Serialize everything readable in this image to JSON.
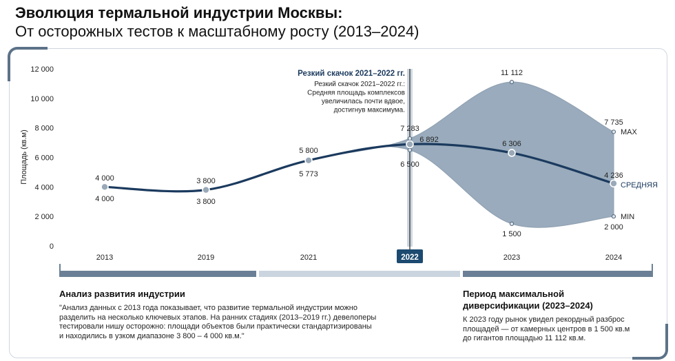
{
  "title_line1": "Эволюция термальной индустрии Москвы:",
  "title_line2": "От осторожных тестов к масштабному росту (2013–2024)",
  "chart_data": {
    "type": "line",
    "ylabel": "Площадь (кв.м)",
    "ylim": [
      0,
      12000
    ],
    "yticks": [
      "0",
      "2 000",
      "4 000",
      "6 000",
      "8 000",
      "10 000",
      "12 000"
    ],
    "categories": [
      "2013",
      "2019",
      "2021",
      "2022",
      "2023",
      "2024"
    ],
    "highlighted_category": "2022",
    "series": [
      {
        "name": "MAX",
        "values": [
          4000,
          3800,
          5800,
          7283,
          11112,
          7735
        ],
        "labels": [
          "4 000",
          "3 800",
          "5 800",
          "7 283",
          "11 112",
          "7 735"
        ]
      },
      {
        "name": "СРЕДНЯЯ",
        "values": [
          4000,
          3800,
          5800,
          6892,
          6306,
          4236
        ],
        "labels": [
          "",
          "",
          "",
          "6 892",
          "6 306",
          "4 236"
        ]
      },
      {
        "name": "MIN",
        "values": [
          4000,
          3800,
          5773,
          6500,
          1500,
          2000
        ],
        "labels": [
          "4 000",
          "3 800",
          "5 773",
          "6 500",
          "1 500",
          "2 000"
        ]
      }
    ],
    "annotation": {
      "title": "Резкий скачок 2021–2022 гг.",
      "lines": [
        "Резкий скачок 2021–2022 гг.:",
        "Средняя площадь комплексов",
        "увеличилась почти вдвое,",
        "достигнув максимума."
      ]
    },
    "colors": {
      "line": "#1b3a5e",
      "band": "#7d94aa",
      "highlight": "#1c4a70",
      "axis": "#444444"
    }
  },
  "panel_left": {
    "title": "Анализ развития индустрии",
    "text_lines": [
      "\"Анализ данных с 2013 года показывает, что развитие термальной индустрии можно",
      "разделить на несколько ключевых этапов. На ранних стадиях (2013–2019 гг.) девелоперы",
      "тестировали нишу осторожно: площади объектов были практически стандартизированы",
      "и находились в узком диапазоне 3 800 – 4 000 кв.м.\""
    ]
  },
  "panel_right": {
    "title_lines": [
      "Период максимальной",
      "диверсификации (2023–2024)"
    ],
    "text_lines": [
      "К 2023 году рынок увидел рекордный разброс",
      "площадей — от камерных центров в 1 500 кв.м",
      "до гигантов площадью 11 112 кв.м."
    ]
  }
}
